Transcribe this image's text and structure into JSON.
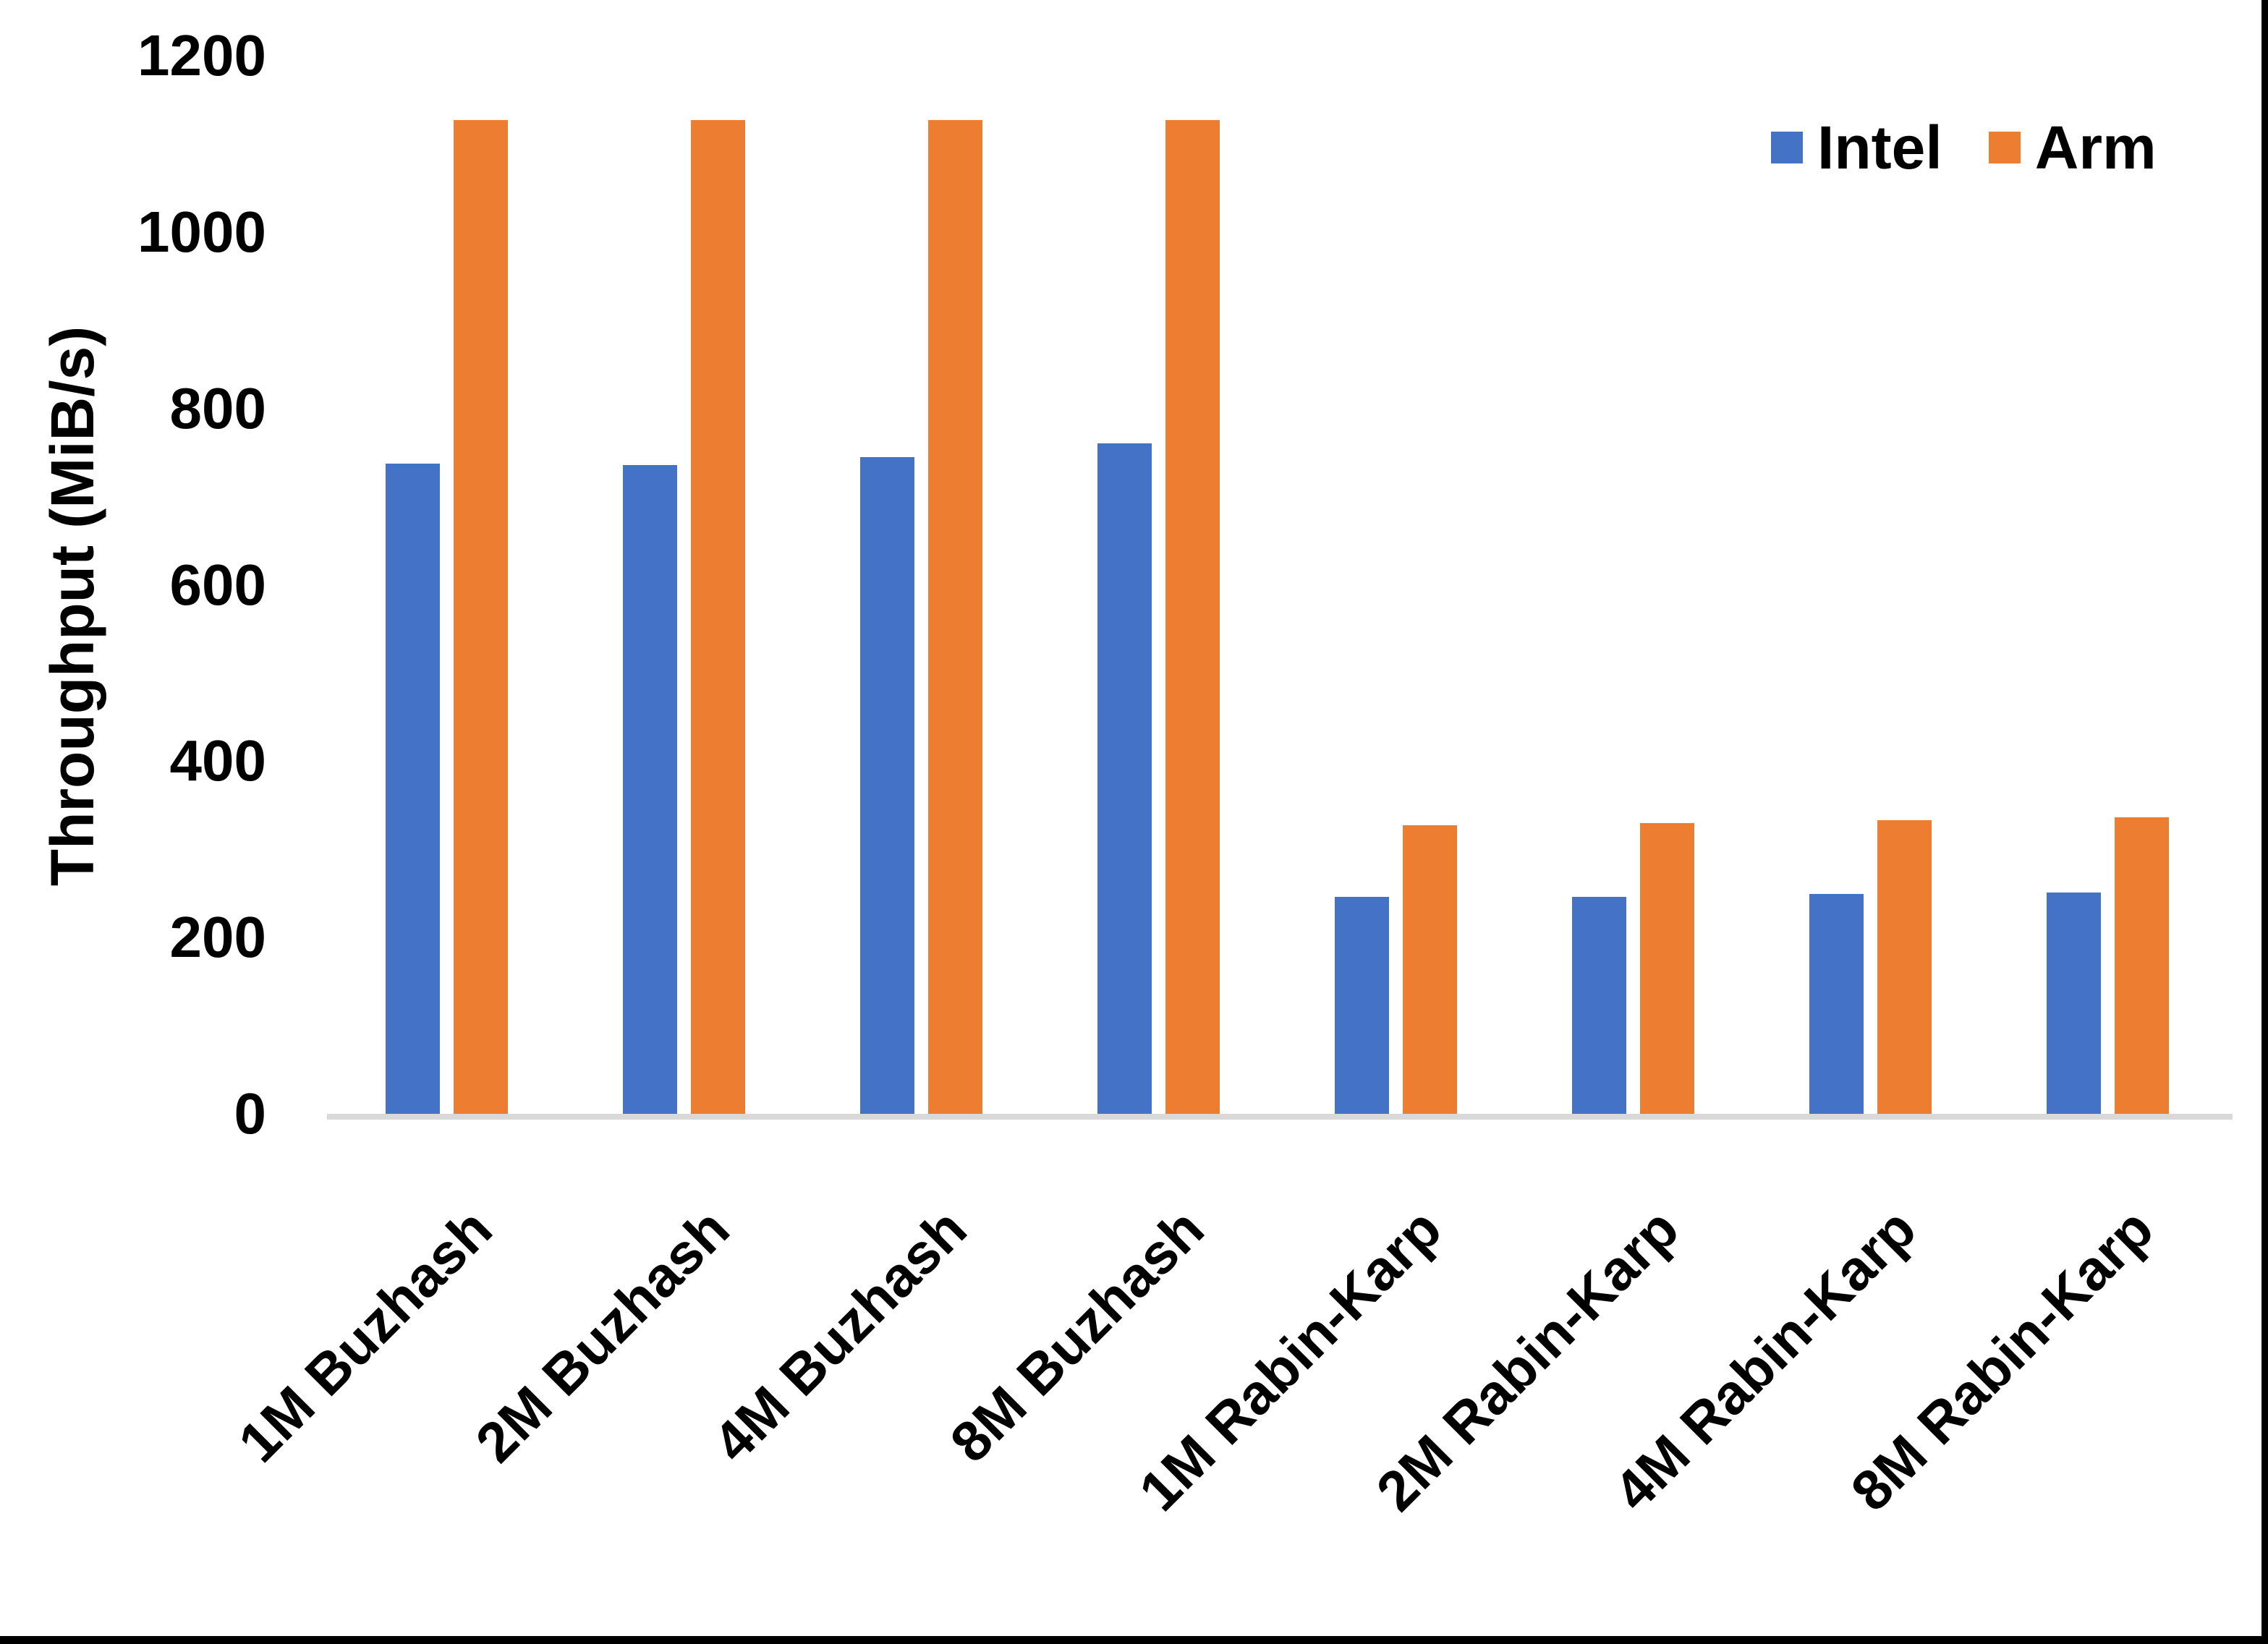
{
  "chart_data": {
    "type": "bar",
    "title": "",
    "categories": [
      "1M Buzhash",
      "2M Buzhash",
      "4M Buzhash",
      "8M Buzhash",
      "1M Rabin-Karp",
      "2M Rabin-Karp",
      "4M Rabin-Karp",
      "8M Rabin-Karp"
    ],
    "series": [
      {
        "name": "Intel",
        "color": "#4472C4",
        "values": [
          737,
          736,
          745,
          760,
          246,
          246,
          249,
          251
        ]
      },
      {
        "name": "Arm",
        "color": "#ED7D31",
        "values": [
          1127,
          1127,
          1127,
          1127,
          327,
          330,
          333,
          336
        ]
      }
    ],
    "xlabel": "",
    "ylabel": "Throughput (MiB/s)",
    "ylim": [
      0,
      1200
    ],
    "y_ticks": [
      0,
      200,
      400,
      600,
      800,
      1000,
      1200
    ],
    "grid": "off",
    "legend_position": "top-right"
  },
  "colors": {
    "axis_line": "#D9D9D9",
    "text": "#000000",
    "frame": "#000000",
    "background": "#FFFFFF"
  }
}
